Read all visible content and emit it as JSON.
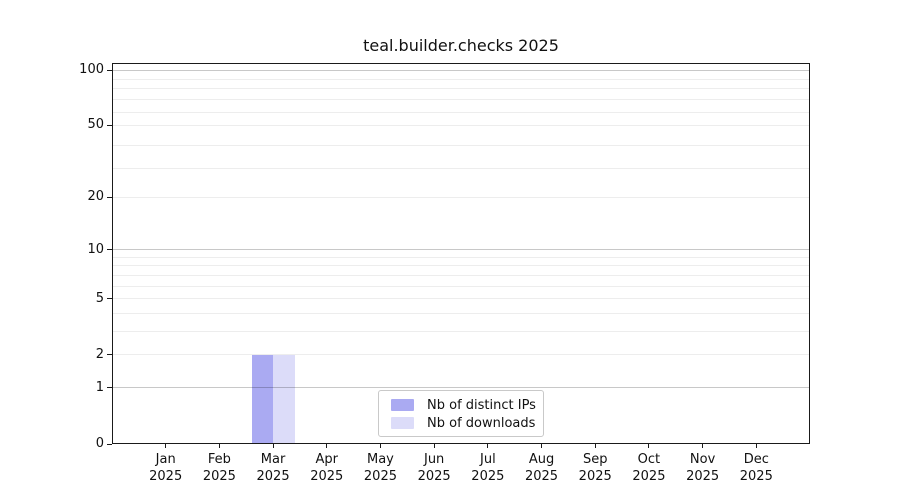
{
  "chart_data": {
    "type": "bar",
    "title": "teal.builder.checks 2025",
    "x_categories": [
      "Jan",
      "Feb",
      "Mar",
      "Apr",
      "May",
      "Jun",
      "Jul",
      "Aug",
      "Sep",
      "Oct",
      "Nov",
      "Dec"
    ],
    "x_year": "2025",
    "series": [
      {
        "name": "Nb of distinct IPs",
        "color": "#aaaaf2",
        "values": [
          0,
          0,
          2,
          0,
          0,
          0,
          0,
          0,
          0,
          0,
          0,
          0
        ]
      },
      {
        "name": "Nb of downloads",
        "color": "#dcdcf9",
        "values": [
          0,
          0,
          2,
          0,
          0,
          0,
          0,
          0,
          0,
          0,
          0,
          0
        ]
      }
    ],
    "y_scale": "log10(1+y)",
    "y_ticks": [
      0,
      1,
      2,
      5,
      10,
      20,
      50,
      100
    ],
    "ylim": [
      0,
      100
    ],
    "grid": true,
    "legend": {
      "position": "inside-bottom-center",
      "border_color": "#c9c9c9"
    }
  }
}
